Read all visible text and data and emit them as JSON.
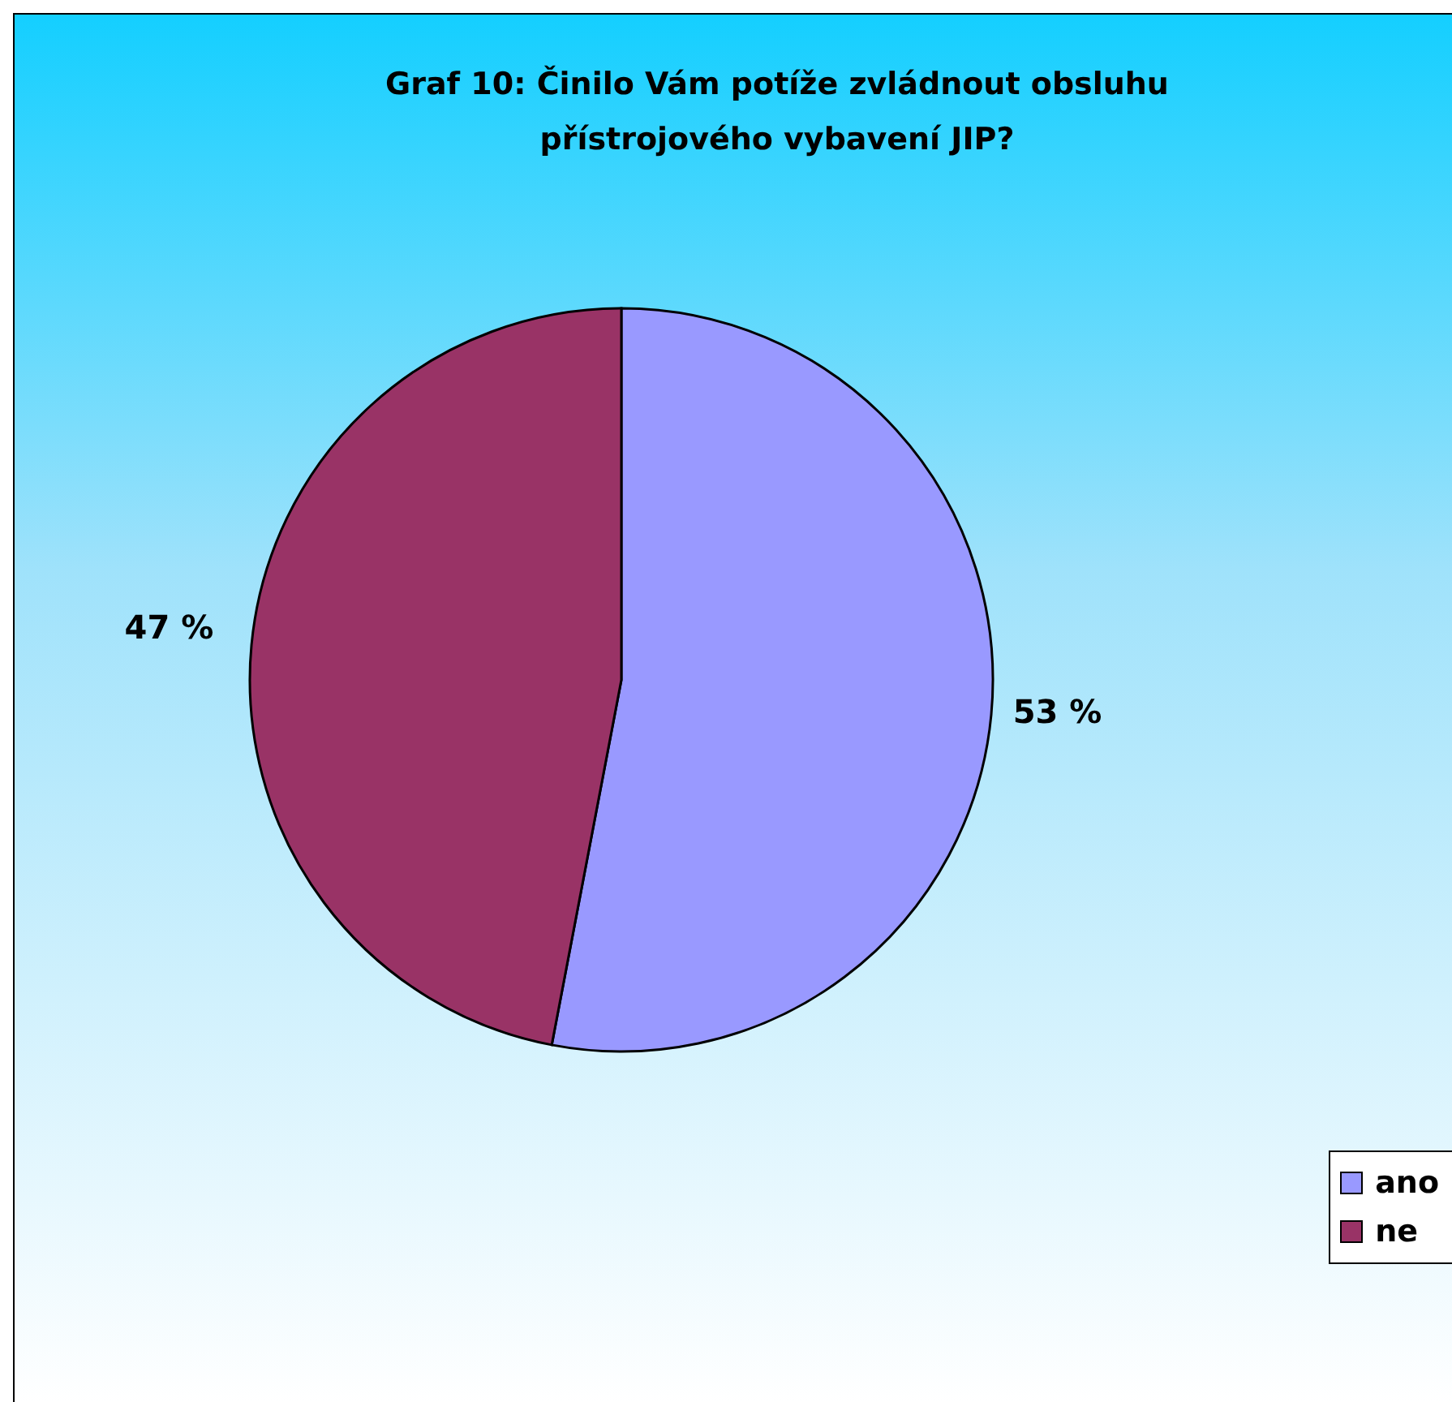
{
  "chart_data": {
    "type": "pie",
    "title": "Graf 10: Činilo Vám potíže zvládnout obsluhu přístrojového vybavení JIP?",
    "categories": [
      "ano",
      "ne"
    ],
    "values": [
      53,
      47
    ],
    "colors": [
      "#9999ff",
      "#993366"
    ],
    "value_labels": [
      "53 %",
      "47 %"
    ],
    "legend": "right"
  }
}
